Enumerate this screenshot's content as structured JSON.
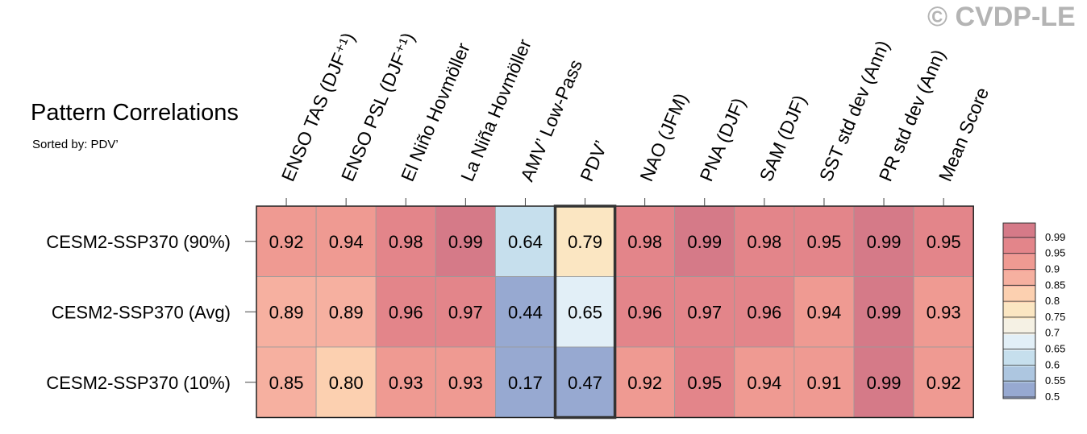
{
  "watermark": "© CVDP-LE",
  "chart_data": {
    "type": "heatmap",
    "title": "Pattern Correlations",
    "subtitle": "Sorted by: PDV’",
    "columns": [
      "ENSO TAS (DJF⁺¹)",
      "ENSO PSL (DJF⁺¹)",
      "El Niño Hovmöller",
      "La Niña Hovmöller",
      "AMV’ Low-Pass",
      "PDV’",
      "NAO (JFM)",
      "PNA (DJF)",
      "SAM (DJF)",
      "SST std dev (Ann)",
      "PR std dev (Ann)",
      "Mean Score"
    ],
    "rows": [
      "CESM2-SSP370 (90%)",
      "CESM2-SSP370 (Avg)",
      "CESM2-SSP370 (10%)"
    ],
    "values": [
      [
        0.92,
        0.94,
        0.98,
        0.99,
        0.64,
        0.79,
        0.98,
        0.99,
        0.98,
        0.95,
        0.99,
        0.95
      ],
      [
        0.89,
        0.89,
        0.96,
        0.97,
        0.44,
        0.65,
        0.96,
        0.97,
        0.96,
        0.94,
        0.99,
        0.93
      ],
      [
        0.85,
        0.8,
        0.93,
        0.93,
        0.17,
        0.47,
        0.92,
        0.95,
        0.94,
        0.91,
        0.99,
        0.92
      ]
    ],
    "highlight_column": "PDV’",
    "colorbar": {
      "labels": [
        "0.99",
        "0.95",
        "0.9",
        "0.85",
        "0.8",
        "0.75",
        "0.7",
        "0.65",
        "0.6",
        "0.55",
        "0.5"
      ],
      "colors": [
        "#d57a88",
        "#e3858a",
        "#ef9a92",
        "#f6b0a0",
        "#fcd0b0",
        "#fbe6c2",
        "#f5f1e4",
        "#e2eff7",
        "#c6dfed",
        "#adc6e0",
        "#97a9d1"
      ]
    }
  }
}
